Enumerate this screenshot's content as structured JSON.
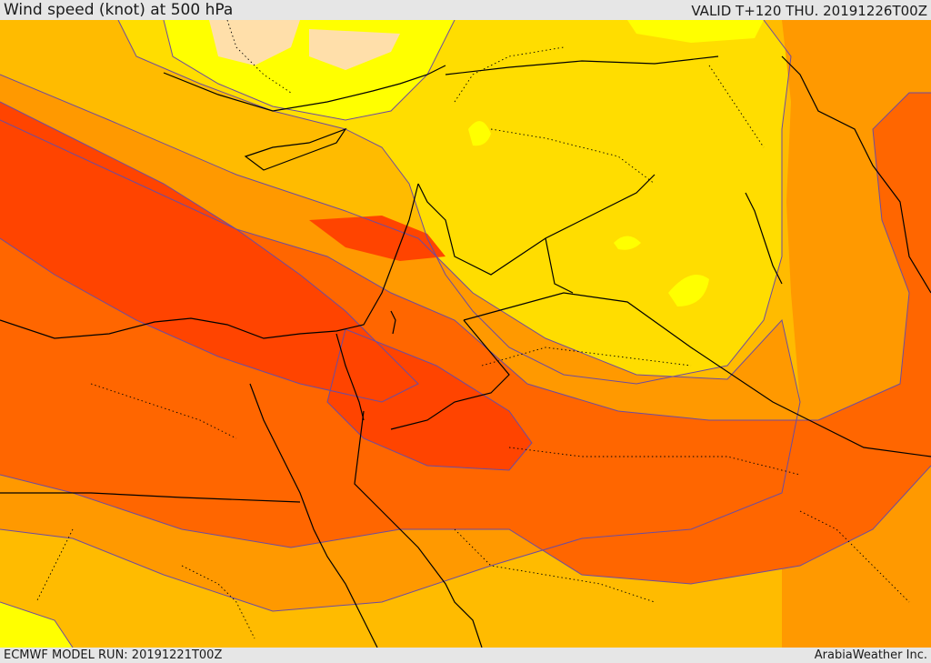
{
  "header": {
    "title": "Wind speed (knot) at 500 hPa",
    "valid": "VALID T+120 THU. 20191226T00Z"
  },
  "footer": {
    "model_run": "ECMWF MODEL RUN: 20191221T00Z",
    "credit": "ArabiaWeather Inc."
  },
  "map": {
    "palette": [
      "#ffff00",
      "#ffdd00",
      "#ffbb00",
      "#ff9900",
      "#ff6600",
      "#ff4400",
      "#ffdfaa"
    ],
    "line_color": "#000000",
    "contour_color": "#6d4c9f"
  }
}
